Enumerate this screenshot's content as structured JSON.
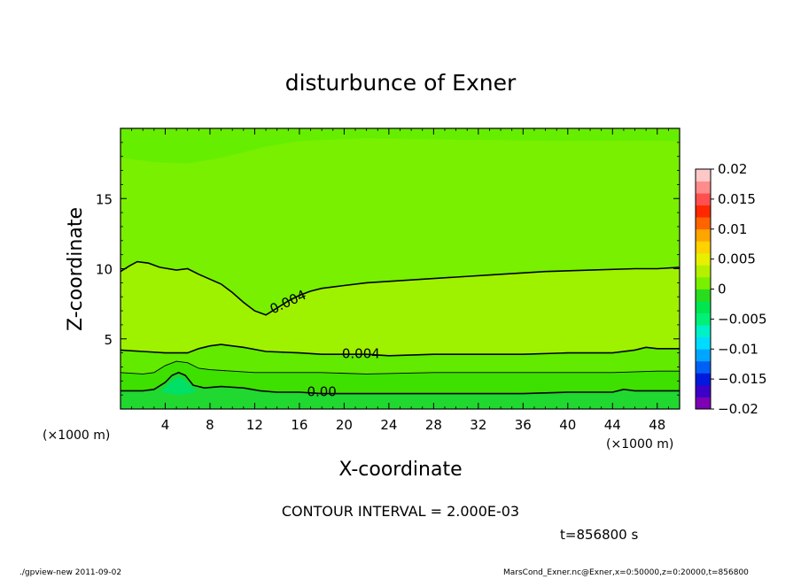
{
  "chart_data": {
    "type": "contour",
    "title": "disturbunce of Exner",
    "xlabel": "X-coordinate",
    "ylabel": "Z-coordinate",
    "x_unit": "(×1000 m)",
    "y_unit": "(×1000 m)",
    "xlim": [
      0,
      50
    ],
    "ylim": [
      0,
      20
    ],
    "x_ticks": [
      4,
      8,
      12,
      16,
      20,
      24,
      28,
      32,
      36,
      40,
      44,
      48
    ],
    "y_ticks": [
      5,
      10,
      15
    ],
    "contour_interval_text": "CONTOUR INTERVAL = 2.000E-03",
    "time_text": "t=856800 s",
    "colorbar": {
      "ticks": [
        "0.02",
        "0.015",
        "0.01",
        "0.005",
        "0",
        "−0.005",
        "−0.01",
        "−0.015",
        "−0.02"
      ],
      "range": [
        -0.02,
        0.02
      ],
      "colors": [
        "#7d00b4",
        "#3c00c8",
        "#0019dc",
        "#0060f5",
        "#00a5ff",
        "#00dcff",
        "#00f0c8",
        "#00f078",
        "#00e650",
        "#2adc1e",
        "#78f000",
        "#b4f000",
        "#e6f000",
        "#ffd200",
        "#ffa500",
        "#ff6400",
        "#ff2800",
        "#ff5050",
        "#ff8c8c",
        "#ffc8c8"
      ]
    },
    "contour_labels": [
      {
        "text": "0.004",
        "x": 15,
        "z": 7.6,
        "angle": -25
      },
      {
        "text": "0.004",
        "x": 21.5,
        "z": 3.9,
        "angle": 0
      },
      {
        "text": "0.00",
        "x": 18,
        "z": 1.2,
        "angle": 0
      }
    ],
    "contours": [
      {
        "level": 0.004,
        "points": [
          [
            0,
            9.8
          ],
          [
            0.8,
            10.2
          ],
          [
            1.5,
            10.5
          ],
          [
            2.5,
            10.4
          ],
          [
            3.5,
            10.1
          ],
          [
            5,
            9.9
          ],
          [
            6,
            10
          ],
          [
            7,
            9.6
          ],
          [
            9,
            8.9
          ],
          [
            10,
            8.3
          ],
          [
            11,
            7.6
          ],
          [
            12,
            7
          ],
          [
            13,
            6.7
          ],
          [
            14,
            7.2
          ],
          [
            15,
            7.7
          ],
          [
            16,
            8.1
          ],
          [
            17,
            8.4
          ],
          [
            18,
            8.6
          ],
          [
            20,
            8.8
          ],
          [
            22,
            9
          ],
          [
            26,
            9.2
          ],
          [
            30,
            9.4
          ],
          [
            34,
            9.6
          ],
          [
            38,
            9.8
          ],
          [
            42,
            9.9
          ],
          [
            46,
            10
          ],
          [
            48,
            10
          ],
          [
            50,
            10.1
          ]
        ]
      },
      {
        "level": 0.004,
        "points": [
          [
            0,
            4.2
          ],
          [
            2,
            4.1
          ],
          [
            4,
            4
          ],
          [
            6,
            4
          ],
          [
            7,
            4.3
          ],
          [
            8,
            4.5
          ],
          [
            9,
            4.6
          ],
          [
            11,
            4.4
          ],
          [
            13,
            4.1
          ],
          [
            16,
            4
          ],
          [
            18,
            3.9
          ],
          [
            22,
            3.9
          ],
          [
            24,
            3.8
          ],
          [
            28,
            3.9
          ],
          [
            32,
            3.9
          ],
          [
            36,
            3.9
          ],
          [
            40,
            4
          ],
          [
            44,
            4
          ],
          [
            46,
            4.2
          ],
          [
            47,
            4.4
          ],
          [
            48,
            4.3
          ],
          [
            50,
            4.3
          ]
        ]
      },
      {
        "level": 0.002,
        "points": [
          [
            0,
            2.6
          ],
          [
            2,
            2.5
          ],
          [
            3,
            2.6
          ],
          [
            4,
            3.1
          ],
          [
            5,
            3.4
          ],
          [
            6,
            3.3
          ],
          [
            7,
            2.9
          ],
          [
            8,
            2.8
          ],
          [
            10,
            2.7
          ],
          [
            12,
            2.6
          ],
          [
            15,
            2.6
          ],
          [
            18,
            2.6
          ],
          [
            22,
            2.5
          ],
          [
            28,
            2.6
          ],
          [
            32,
            2.6
          ],
          [
            36,
            2.6
          ],
          [
            40,
            2.6
          ],
          [
            44,
            2.6
          ],
          [
            48,
            2.7
          ],
          [
            50,
            2.7
          ]
        ]
      },
      {
        "level": 0.0,
        "points": [
          [
            0,
            1.3
          ],
          [
            2,
            1.3
          ],
          [
            3,
            1.4
          ],
          [
            4,
            1.9
          ],
          [
            4.6,
            2.4
          ],
          [
            5.2,
            2.6
          ],
          [
            5.8,
            2.4
          ],
          [
            6.5,
            1.7
          ],
          [
            7.5,
            1.5
          ],
          [
            9,
            1.6
          ],
          [
            11,
            1.5
          ],
          [
            12.5,
            1.3
          ],
          [
            14,
            1.2
          ],
          [
            16,
            1.2
          ],
          [
            18,
            1.1
          ],
          [
            20,
            1.1
          ],
          [
            24,
            1.1
          ],
          [
            28,
            1.1
          ],
          [
            32,
            1.1
          ],
          [
            36,
            1.1
          ],
          [
            40,
            1.2
          ],
          [
            44,
            1.2
          ],
          [
            45,
            1.4
          ],
          [
            46,
            1.3
          ],
          [
            48,
            1.3
          ],
          [
            50,
            1.3
          ]
        ]
      }
    ],
    "filled_regions": [
      {
        "name": "upper-cap",
        "color": "#66ee00"
      },
      {
        "name": "main-band",
        "color": "#78f000"
      },
      {
        "name": "positive-band",
        "color": "#9ef200"
      },
      {
        "name": "low-band",
        "color": "#62ea00"
      },
      {
        "name": "near-surface-band",
        "color": "#3ee000"
      },
      {
        "name": "surface-band",
        "color": "#20d830"
      },
      {
        "name": "negative-bump",
        "color": "#00e066"
      }
    ]
  },
  "footer": {
    "left": "./gpview-new  2011-09-02",
    "right": "MarsCond_Exner.nc@Exner,x=0:50000,z=0:20000,t=856800"
  }
}
